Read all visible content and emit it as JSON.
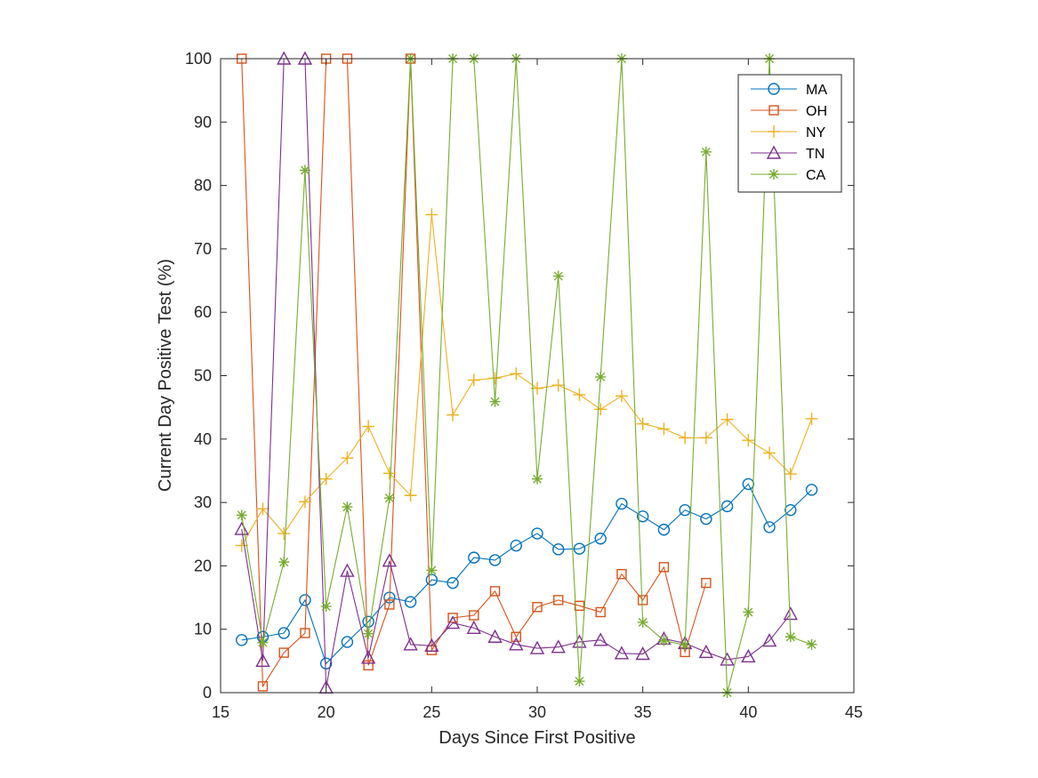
{
  "chart_data": {
    "type": "line",
    "title": "",
    "xlabel": "Days Since First Positive",
    "ylabel": "Current Day Positive Test (%)",
    "xlim": [
      15,
      45
    ],
    "ylim": [
      0,
      100
    ],
    "xticks": [
      15,
      20,
      25,
      30,
      35,
      40,
      45
    ],
    "yticks": [
      0,
      10,
      20,
      30,
      40,
      50,
      60,
      70,
      80,
      90,
      100
    ],
    "legend_position": "top-right",
    "series": [
      {
        "name": "MA",
        "color": "#0072BD",
        "marker": "circle",
        "x": [
          16,
          17,
          18,
          19,
          20,
          21,
          22,
          23,
          24,
          25,
          26,
          27,
          28,
          29,
          30,
          31,
          32,
          33,
          34,
          35,
          36,
          37,
          38,
          39,
          40,
          41,
          42,
          43
        ],
        "y": [
          8.3,
          8.8,
          9.4,
          14.6,
          4.6,
          8.0,
          11.2,
          15.0,
          14.3,
          17.8,
          17.3,
          21.3,
          20.9,
          23.2,
          25.1,
          22.6,
          22.7,
          24.3,
          29.8,
          27.8,
          25.7,
          28.8,
          27.4,
          29.4,
          32.9,
          26.1,
          28.8,
          32.0
        ]
      },
      {
        "name": "OH",
        "color": "#D95319",
        "marker": "square",
        "x": [
          16,
          17,
          18,
          19,
          20,
          21,
          22,
          23,
          24,
          25,
          26,
          27,
          28,
          29,
          30,
          31,
          32,
          33,
          34,
          35,
          36,
          37,
          38
        ],
        "y": [
          100,
          1.0,
          6.3,
          9.4,
          100,
          100,
          4.3,
          13.9,
          100,
          6.7,
          11.8,
          12.2,
          16.0,
          8.8,
          13.5,
          14.6,
          13.7,
          12.7,
          18.7,
          14.6,
          19.8,
          6.4,
          17.3
        ]
      },
      {
        "name": "NY",
        "color": "#EDB120",
        "marker": "plus",
        "x": [
          16,
          17,
          18,
          19,
          20,
          21,
          22,
          23,
          24,
          25,
          26,
          27,
          28,
          29,
          30,
          31,
          32,
          33,
          34,
          35,
          36,
          37,
          38,
          39,
          40,
          41,
          42,
          43
        ],
        "y": [
          23.2,
          29.0,
          25.1,
          30.1,
          33.7,
          37.0,
          42.0,
          34.6,
          31.1,
          75.4,
          43.8,
          49.3,
          49.6,
          50.3,
          48.0,
          48.5,
          47.0,
          44.7,
          46.8,
          42.4,
          41.6,
          40.2,
          40.2,
          43.1,
          39.8,
          37.8,
          34.5,
          43.2
        ]
      },
      {
        "name": "TN",
        "color": "#7E2F8E",
        "marker": "triangle",
        "x": [
          16,
          17,
          18,
          19,
          20,
          21,
          22,
          23,
          24,
          25,
          26,
          27,
          28,
          29,
          30,
          31,
          32,
          33,
          34,
          35,
          36,
          37,
          38,
          39,
          40,
          41,
          42
        ],
        "y": [
          25.8,
          5.0,
          100,
          100,
          0.8,
          19.2,
          5.5,
          20.8,
          7.6,
          7.4,
          11.0,
          10.2,
          8.8,
          7.6,
          7.0,
          7.2,
          8.0,
          8.3,
          6.2,
          6.1,
          8.5,
          7.8,
          6.4,
          5.2,
          5.7,
          8.2,
          12.4
        ]
      },
      {
        "name": "CA",
        "color": "#77AC30",
        "marker": "asterisk",
        "x": [
          16,
          17,
          18,
          19,
          20,
          21,
          22,
          23,
          24,
          25,
          26,
          27,
          28,
          29,
          30,
          31,
          32,
          33,
          34,
          35,
          36,
          37,
          38,
          39,
          40,
          41,
          42,
          43
        ],
        "y": [
          28.0,
          7.9,
          20.6,
          82.4,
          13.6,
          29.3,
          9.3,
          30.7,
          100,
          19.3,
          100,
          100,
          45.9,
          100,
          33.7,
          65.7,
          1.8,
          49.8,
          100,
          11.1,
          8.2,
          7.5,
          85.3,
          0.0,
          12.7,
          100,
          8.8,
          7.6
        ]
      }
    ]
  }
}
